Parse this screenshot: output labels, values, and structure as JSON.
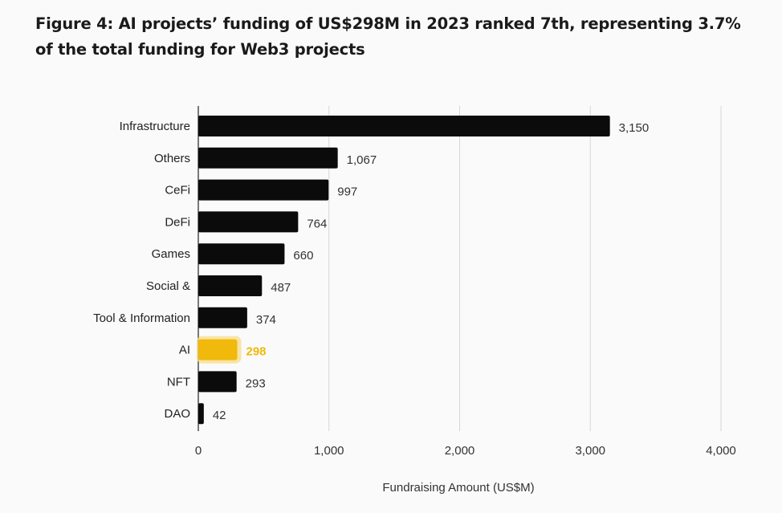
{
  "title": "Figure 4: AI projects’ funding of US$298M in 2023 ranked 7th, representing 3.7% of the total funding for Web3 projects",
  "colors": {
    "bar": "#0b0b0b",
    "highlight": "#f0b90b",
    "highlight_glow": "#f7dc85",
    "grid": "#d6d6d6",
    "axis": "#222222"
  },
  "chart_data": {
    "type": "bar",
    "orientation": "horizontal",
    "categories": [
      "Infrastructure",
      "Others",
      "CeFi",
      "DeFi",
      "Games",
      "Social &",
      "Tool & Information",
      "AI",
      "NFT",
      "DAO"
    ],
    "values": [
      3150,
      1067,
      997,
      764,
      660,
      487,
      374,
      298,
      293,
      42
    ],
    "value_labels": [
      "3,150",
      "1,067",
      "997",
      "764",
      "660",
      "487",
      "374",
      "298",
      "293",
      "42"
    ],
    "highlighted_category": "AI",
    "xlabel": "Fundraising Amount (US$M)",
    "ylabel": "",
    "xlim": [
      0,
      4000
    ],
    "xticks": [
      0,
      1000,
      2000,
      3000,
      4000
    ],
    "xtick_labels": [
      "0",
      "1,000",
      "2,000",
      "3,000",
      "4,000"
    ],
    "grid": true,
    "legend": "none"
  }
}
